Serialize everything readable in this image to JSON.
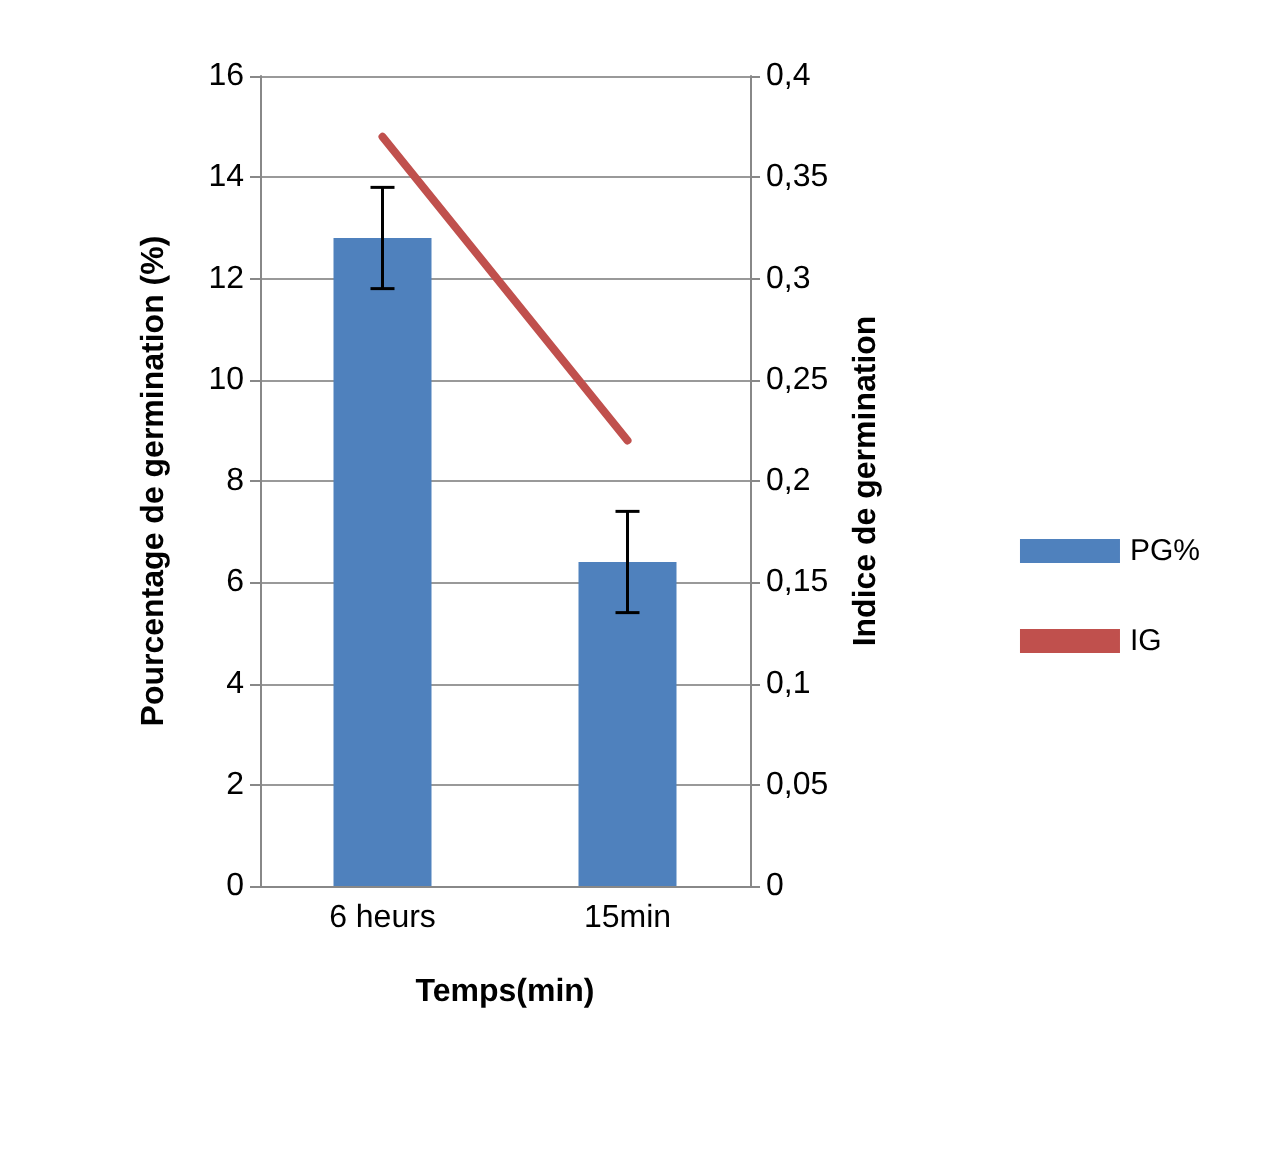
{
  "chart_data": {
    "type": "bar",
    "xlabel": "Temps(min)",
    "ylabel": "Pourcentage de germination (%)",
    "y2label": "Indice de germination",
    "categories": [
      "6 heurs",
      "15min"
    ],
    "series": [
      {
        "name": "PG%",
        "color": "#4f81bd",
        "values": [
          12.8,
          6.4
        ],
        "errors": [
          1,
          1
        ]
      },
      {
        "name": "IG",
        "type": "line",
        "axis": "y2",
        "color": "#c0504d",
        "values": [
          0.37,
          0.22
        ],
        "marker": "none"
      }
    ],
    "ylim": [
      0,
      16
    ],
    "yticks": [
      0,
      2,
      4,
      6,
      8,
      10,
      12,
      14,
      16
    ],
    "y2lim": [
      0,
      0.4
    ],
    "y2ticks": [
      0,
      {
        "value": 0.05,
        "label": "0,05"
      },
      {
        "value": 0.1,
        "label": "0,1"
      },
      {
        "value": 0.15,
        "label": "0,15"
      },
      {
        "value": 0.2,
        "label": "0,2"
      },
      {
        "value": 0.25,
        "label": "0,25"
      },
      {
        "value": 0.3,
        "label": "0,3"
      },
      {
        "value": 0.35,
        "label": "0,35"
      },
      {
        "value": 0.4,
        "label": "0,4"
      }
    ],
    "grid": "y",
    "legend": "right"
  }
}
